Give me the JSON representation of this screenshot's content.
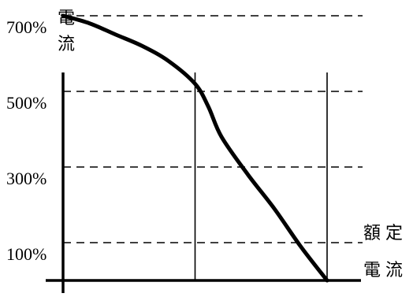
{
  "chart_data": {
    "type": "line",
    "title": "",
    "ylabel_chars": [
      "電",
      "流"
    ],
    "xlabel_lines": [
      "額定",
      "電流"
    ],
    "y_ticks": [
      "700%",
      "500%",
      "300%",
      "100%"
    ],
    "y_tick_values": [
      700,
      500,
      300,
      100
    ],
    "ylim": [
      0,
      900
    ],
    "xlim": [
      0,
      100
    ],
    "vertical_reference_x": [
      50,
      100
    ],
    "grid": "horizontal dashed at y ticks",
    "series": [
      {
        "x": [
          0,
          10,
          20,
          30,
          40,
          50,
          55,
          60,
          70,
          80,
          90,
          100
        ],
        "y": [
          700,
          680,
          650,
          620,
          580,
          520,
          460,
          380,
          280,
          190,
          90,
          0
        ]
      }
    ]
  }
}
